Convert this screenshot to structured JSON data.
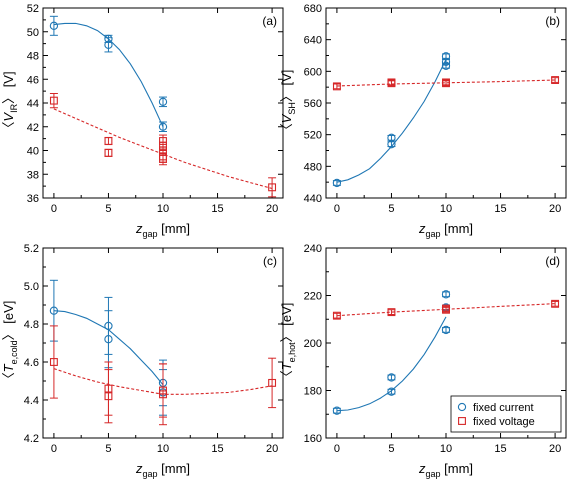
{
  "legend": {
    "fixed_current": "fixed current",
    "fixed_voltage": "fixed voltage"
  },
  "colors": {
    "fixed_current": "#1f77b4",
    "fixed_voltage": "#d62728"
  },
  "xlabel": {
    "main": "z",
    "sub": "gap",
    "unit": " [mm]"
  },
  "chart_data": [
    {
      "type": "scatter",
      "panel": "(a)",
      "ylabel": {
        "pre": "〈",
        "main": "V",
        "sub": "IR",
        "post": "〉 [V]"
      },
      "xlim": [
        -1,
        21
      ],
      "ylim": [
        36,
        52
      ],
      "xticks": [
        0,
        5,
        10,
        15,
        20
      ],
      "yticks": [
        36,
        38,
        40,
        42,
        44,
        46,
        48,
        50,
        52
      ],
      "grid": false,
      "series": [
        {
          "key": "fixed_current",
          "marker": "circle",
          "color": "#1f77b4",
          "x": [
            0,
            5,
            5,
            10,
            10
          ],
          "y": [
            50.5,
            49.4,
            48.9,
            44.1,
            42.0
          ],
          "err": [
            0.8,
            0.3,
            0.6,
            0.4,
            0.4
          ],
          "fit_x": [
            0,
            1,
            2,
            3,
            4,
            5,
            6,
            7,
            8,
            9,
            10
          ],
          "fit_y": [
            50.6,
            50.7,
            50.7,
            50.5,
            50.1,
            49.4,
            48.5,
            47.3,
            45.8,
            44.0,
            42.0
          ]
        },
        {
          "key": "fixed_voltage",
          "marker": "square",
          "color": "#d62728",
          "x": [
            0,
            5,
            5,
            10,
            10,
            10,
            10,
            10,
            20
          ],
          "y": [
            44.2,
            40.8,
            39.8,
            40.8,
            40.4,
            40.0,
            39.5,
            39.3,
            36.9
          ],
          "err": [
            0.6,
            0.3,
            0.3,
            0.5,
            0.3,
            0.3,
            0.5,
            0.5,
            0.8
          ],
          "fit_x": [
            0,
            2,
            4,
            6,
            8,
            10,
            12,
            14,
            16,
            18,
            20
          ],
          "fit_y": [
            43.5,
            42.7,
            41.9,
            41.1,
            40.4,
            39.7,
            39.0,
            38.4,
            37.8,
            37.3,
            36.8
          ]
        }
      ]
    },
    {
      "type": "scatter",
      "panel": "(b)",
      "ylabel": {
        "pre": "〈",
        "main": "V",
        "sub": "SH",
        "post": "〉 [V]"
      },
      "xlim": [
        -1,
        21
      ],
      "ylim": [
        440,
        680
      ],
      "xticks": [
        0,
        5,
        10,
        15,
        20
      ],
      "yticks": [
        440,
        480,
        520,
        560,
        600,
        640,
        680
      ],
      "grid": false,
      "series": [
        {
          "key": "fixed_current",
          "marker": "circle",
          "color": "#1f77b4",
          "x": [
            0,
            5,
            5,
            10,
            10,
            10
          ],
          "y": [
            459,
            508,
            516,
            607,
            612,
            619
          ],
          "err": [
            3,
            3,
            3,
            3,
            3,
            3
          ],
          "fit_x": [
            0,
            1,
            2,
            3,
            4,
            5,
            6,
            7,
            8,
            9,
            10
          ],
          "fit_y": [
            460,
            463,
            469,
            477,
            490,
            505,
            522,
            541,
            562,
            587,
            615
          ]
        },
        {
          "key": "fixed_voltage",
          "marker": "square",
          "color": "#d62728",
          "x": [
            0,
            5,
            5,
            10,
            10,
            20
          ],
          "y": [
            581,
            585,
            586,
            585,
            586,
            589
          ],
          "err": [
            3,
            3,
            3,
            3,
            3,
            3
          ],
          "fit_x": [
            0,
            5,
            10,
            15,
            20
          ],
          "fit_y": [
            581.5,
            584,
            585.5,
            587,
            589
          ]
        }
      ]
    },
    {
      "type": "scatter",
      "panel": "(c)",
      "ylabel": {
        "pre": "〈",
        "main": "T",
        "sub": "e,cold",
        "post": "〉 [eV]"
      },
      "xlim": [
        -1,
        21
      ],
      "ylim": [
        4.2,
        5.2
      ],
      "xticks": [
        0,
        5,
        10,
        15,
        20
      ],
      "yticks": [
        4.2,
        4.4,
        4.6,
        4.8,
        5.0,
        5.2
      ],
      "grid": false,
      "series": [
        {
          "key": "fixed_current",
          "marker": "circle",
          "color": "#1f77b4",
          "x": [
            0,
            5,
            5,
            10,
            10
          ],
          "y": [
            4.87,
            4.79,
            4.72,
            4.49,
            4.44
          ],
          "err": [
            0.16,
            0.15,
            0.15,
            0.12,
            0.12
          ],
          "fit_x": [
            0,
            1,
            2,
            3,
            4,
            5,
            6,
            7,
            8,
            9,
            10
          ],
          "fit_y": [
            4.87,
            4.865,
            4.85,
            4.83,
            4.8,
            4.77,
            4.72,
            4.67,
            4.61,
            4.55,
            4.48
          ]
        },
        {
          "key": "fixed_voltage",
          "marker": "square",
          "color": "#d62728",
          "x": [
            0,
            5,
            5,
            10,
            10,
            20
          ],
          "y": [
            4.6,
            4.46,
            4.42,
            4.45,
            4.43,
            4.49
          ],
          "err": [
            0.19,
            0.14,
            0.14,
            0.14,
            0.16,
            0.13
          ],
          "fit_x": [
            0,
            2,
            4,
            6,
            8,
            10,
            12,
            14,
            16,
            18,
            20
          ],
          "fit_y": [
            4.565,
            4.527,
            4.495,
            4.47,
            4.45,
            4.43,
            4.43,
            4.435,
            4.44,
            4.455,
            4.475
          ]
        }
      ]
    },
    {
      "type": "scatter",
      "panel": "(d)",
      "ylabel": {
        "pre": "〈",
        "main": "T",
        "sub": "e,hot",
        "post": "〉 [eV]"
      },
      "xlim": [
        -1,
        21
      ],
      "ylim": [
        160,
        240
      ],
      "xticks": [
        0,
        5,
        10,
        15,
        20
      ],
      "yticks": [
        160,
        180,
        200,
        220,
        240
      ],
      "grid": false,
      "legend_position": "bottom-right",
      "series": [
        {
          "key": "fixed_current",
          "marker": "circle",
          "color": "#1f77b4",
          "x": [
            0,
            5,
            5,
            10,
            10,
            10
          ],
          "y": [
            171.5,
            179.5,
            185.5,
            205.5,
            215,
            220.5
          ],
          "err": [
            1,
            1,
            1,
            1,
            1,
            1
          ],
          "fit_x": [
            0,
            1,
            2,
            3,
            4,
            5,
            6,
            7,
            8,
            9,
            10
          ],
          "fit_y": [
            171.5,
            171.8,
            172.8,
            174.4,
            176.8,
            179.9,
            184.0,
            189.0,
            195.2,
            202.6,
            211.0
          ]
        },
        {
          "key": "fixed_voltage",
          "marker": "square",
          "color": "#d62728",
          "x": [
            0,
            5,
            10,
            10,
            20
          ],
          "y": [
            211.5,
            213,
            214,
            214.5,
            216.5
          ],
          "err": [
            1,
            1,
            1,
            1,
            1
          ],
          "fit_x": [
            0,
            5,
            10,
            15,
            20
          ],
          "fit_y": [
            211.5,
            213,
            214.2,
            215.4,
            216.6
          ]
        }
      ]
    }
  ]
}
